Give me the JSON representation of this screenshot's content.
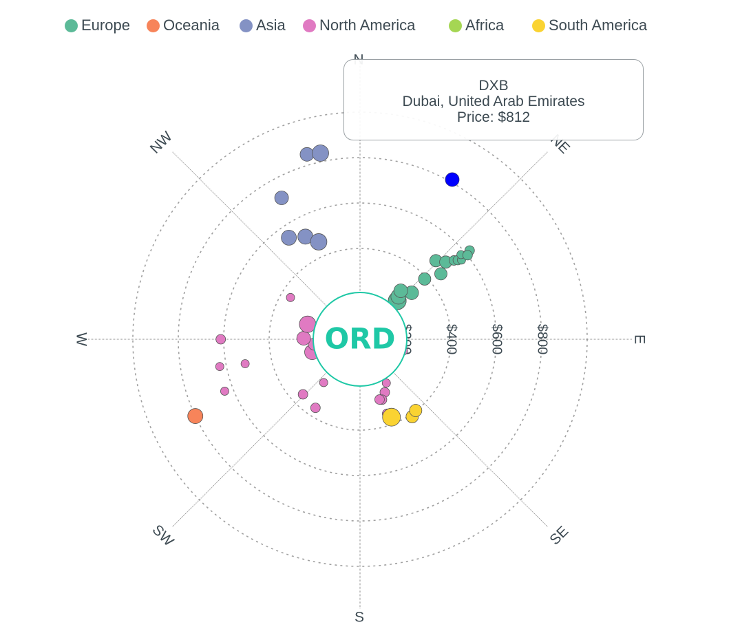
{
  "legend": [
    {
      "name": "Europe",
      "color": "#5cba98"
    },
    {
      "name": "Oceania",
      "color": "#f7845a"
    },
    {
      "name": "Asia",
      "color": "#8492c4"
    },
    {
      "name": "North America",
      "color": "#e07ac2"
    },
    {
      "name": "Africa",
      "color": "#a5d653"
    },
    {
      "name": "South America",
      "color": "#fad332"
    }
  ],
  "center": {
    "label": "ORD",
    "color": "#1fc8a6"
  },
  "tooltip": {
    "code": "DXB",
    "city": "Dubai, United Arab Emirates",
    "price": "Price: $812"
  },
  "chart_data": {
    "type": "scatter",
    "coordinate_system": "polar",
    "radial_axis": {
      "unit": "$",
      "range": [
        0,
        1000
      ],
      "ticks": [
        200,
        400,
        600,
        800
      ],
      "tick_labels": [
        "$200",
        "$400",
        "$600",
        "$800"
      ]
    },
    "angular_axis": {
      "labels": [
        "N",
        "NE",
        "E",
        "SE",
        "S",
        "SW",
        "W",
        "NW"
      ],
      "angles_deg": [
        0,
        45,
        90,
        135,
        180,
        225,
        270,
        315
      ]
    },
    "grid": true,
    "legend_position": "top",
    "highlight": {
      "code": "DXB",
      "city": "Dubai, United Arab Emirates",
      "price": 812,
      "bearing": 30,
      "color": "#0000ff"
    },
    "series": [
      {
        "name": "Europe",
        "color": "#5cba98",
        "points": [
          {
            "bearing": 44,
            "price": 236,
            "size": 13
          },
          {
            "bearing": 44,
            "price": 236,
            "size": 13
          },
          {
            "bearing": 42,
            "price": 253,
            "size": 11
          },
          {
            "bearing": 48,
            "price": 306,
            "size": 10
          },
          {
            "bearing": 47,
            "price": 389,
            "size": 9
          },
          {
            "bearing": 40,
            "price": 279,
            "size": 10
          },
          {
            "bearing": 44,
            "price": 481,
            "size": 9
          },
          {
            "bearing": 51,
            "price": 458,
            "size": 9
          },
          {
            "bearing": 48,
            "price": 508,
            "size": 9
          },
          {
            "bearing": 50,
            "price": 540,
            "size": 7
          },
          {
            "bearing": 51,
            "price": 554,
            "size": 7
          },
          {
            "bearing": 52,
            "price": 567,
            "size": 6
          },
          {
            "bearing": 50,
            "price": 580,
            "size": 6
          },
          {
            "bearing": 51,
            "price": 621,
            "size": 7
          },
          {
            "bearing": 52,
            "price": 601,
            "size": 7
          }
        ]
      },
      {
        "name": "Oceania",
        "color": "#f7845a",
        "points": [
          {
            "bearing": 245,
            "price": 800,
            "size": 11
          }
        ]
      },
      {
        "name": "Asia",
        "color": "#8492c4",
        "points": [
          {
            "bearing": 331,
            "price": 712,
            "size": 10
          },
          {
            "bearing": 325,
            "price": 546,
            "size": 11
          },
          {
            "bearing": 332,
            "price": 512,
            "size": 11
          },
          {
            "bearing": 337,
            "price": 466,
            "size": 12
          },
          {
            "bearing": 344,
            "price": 847,
            "size": 10
          },
          {
            "bearing": 348,
            "price": 838,
            "size": 12
          }
        ]
      },
      {
        "name": "North America",
        "color": "#e07ac2",
        "points": [
          {
            "bearing": 63,
            "price": 145,
            "size": 9
          },
          {
            "bearing": 80,
            "price": 159,
            "size": 9
          },
          {
            "bearing": 85,
            "price": 111,
            "size": 9
          },
          {
            "bearing": 99,
            "price": 107,
            "size": 10
          },
          {
            "bearing": 92,
            "price": 141,
            "size": 8
          },
          {
            "bearing": 91,
            "price": 178,
            "size": 7
          },
          {
            "bearing": 102,
            "price": 102,
            "size": 13
          },
          {
            "bearing": 103,
            "price": 92,
            "size": 11
          },
          {
            "bearing": 106,
            "price": 92,
            "size": 13
          },
          {
            "bearing": 105,
            "price": 198,
            "size": 6
          },
          {
            "bearing": 149,
            "price": 225,
            "size": 6
          },
          {
            "bearing": 155,
            "price": 258,
            "size": 7
          },
          {
            "bearing": 160,
            "price": 349,
            "size": 7
          },
          {
            "bearing": 160,
            "price": 283,
            "size": 7
          },
          {
            "bearing": 162,
            "price": 279,
            "size": 7
          },
          {
            "bearing": 213,
            "price": 360,
            "size": 7
          },
          {
            "bearing": 220,
            "price": 249,
            "size": 6
          },
          {
            "bearing": 226,
            "price": 349,
            "size": 7
          },
          {
            "bearing": 255,
            "price": 218,
            "size": 11
          },
          {
            "bearing": 264,
            "price": 202,
            "size": 9
          },
          {
            "bearing": 271,
            "price": 248,
            "size": 10
          },
          {
            "bearing": 286,
            "price": 240,
            "size": 12
          },
          {
            "bearing": 294,
            "price": 116,
            "size": 7
          },
          {
            "bearing": 258,
            "price": 517,
            "size": 6
          },
          {
            "bearing": 259,
            "price": 629,
            "size": 6
          },
          {
            "bearing": 270,
            "price": 613,
            "size": 7
          },
          {
            "bearing": 249,
            "price": 638,
            "size": 6
          },
          {
            "bearing": 301,
            "price": 357,
            "size": 6
          }
        ]
      },
      {
        "name": "Africa",
        "color": "#a5d653",
        "points": []
      },
      {
        "name": "South America",
        "color": "#fad332",
        "points": [
          {
            "bearing": 158,
            "price": 370,
            "size": 13
          },
          {
            "bearing": 146,
            "price": 411,
            "size": 9
          },
          {
            "bearing": 142,
            "price": 398,
            "size": 9
          }
        ]
      }
    ]
  }
}
